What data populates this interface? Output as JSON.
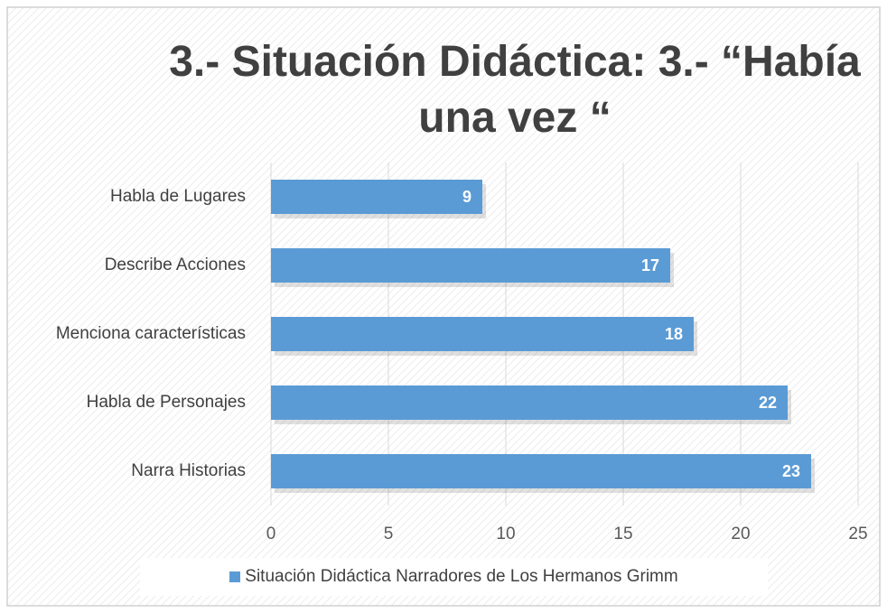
{
  "chart_data": {
    "type": "barh",
    "title": "3.-  Situación Didáctica: 3.- “Había una vez “",
    "categories": [
      "Habla de Lugares",
      "Describe Acciones",
      "Menciona características",
      "Habla de Personajes",
      "Narra Historias"
    ],
    "series": [
      {
        "name": "Situación Didáctica Narradores de Los Hermanos Grimm",
        "color": "#5b9bd5",
        "values": [
          9,
          17,
          18,
          22,
          23
        ]
      }
    ],
    "xlim": [
      0,
      25
    ],
    "xticks": [
      0,
      5,
      10,
      15,
      20,
      25
    ],
    "grid": true,
    "legend": "bottom"
  }
}
